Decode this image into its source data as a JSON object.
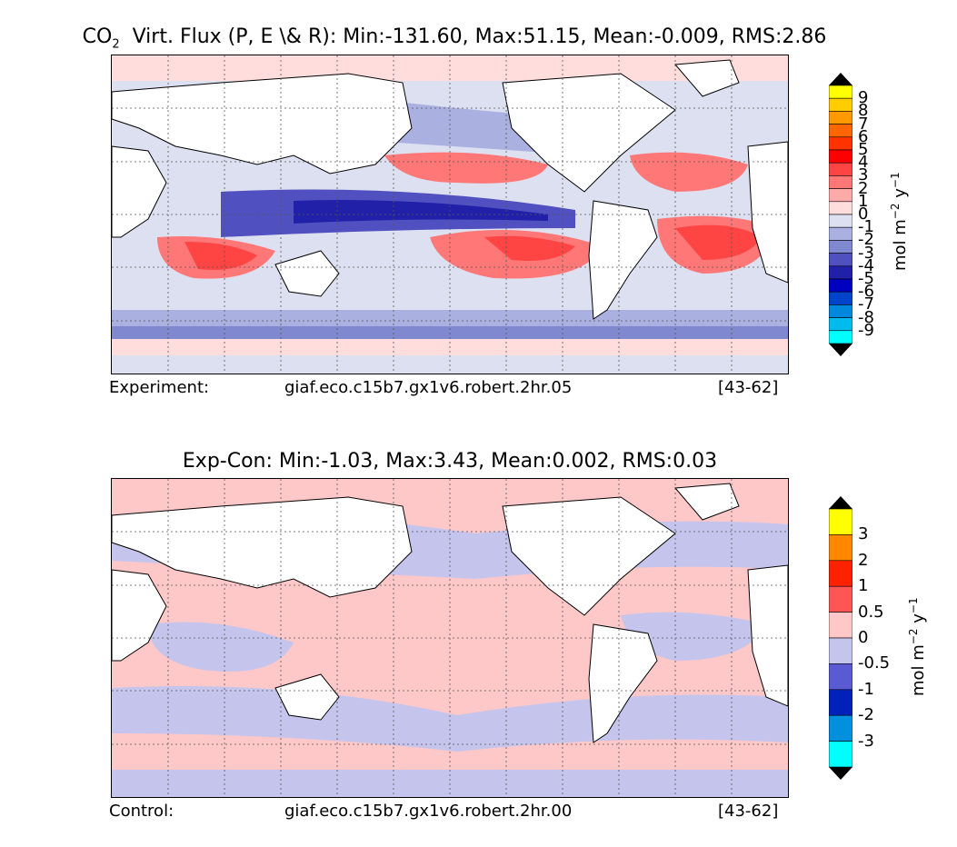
{
  "panel_top": {
    "title": "Virt. Flux (P, E \\& R): Min:-131.60, Max:51.15, Mean:-0.009, RMS:2.86",
    "title_species": "CO",
    "title_species_sub": "2",
    "caption_left": "Experiment:",
    "caption_center": "giaf.eco.c15b7.gx1v6.robert.2hr.05",
    "caption_right": "[43-62]",
    "colorbar": {
      "label": "mol m",
      "label_exp1": "−2",
      "label_mid": " y",
      "label_exp2": "−1",
      "ticks": [
        "9",
        "8",
        "7",
        "6",
        "5",
        "4",
        "3",
        "2",
        "1",
        "0",
        "-1",
        "-2",
        "-3",
        "-4",
        "-5",
        "-6",
        "-7",
        "-8",
        "-9"
      ],
      "colors": [
        "#ffff00",
        "#ffcc00",
        "#ff9900",
        "#ff6600",
        "#ff3300",
        "#ff0000",
        "#ff4444",
        "#ff7777",
        "#ffaaaa",
        "#ffdddd",
        "#dde0f0",
        "#aab0e0",
        "#8088d0",
        "#5050c0",
        "#2020a8",
        "#0000c0",
        "#0044cc",
        "#0088dd",
        "#00bbee",
        "#00ffff"
      ]
    }
  },
  "panel_bottom": {
    "title": "Exp-Con: Min:-1.03, Max:3.43, Mean:0.002, RMS:0.03",
    "caption_left": "Control:",
    "caption_center": "giaf.eco.c15b7.gx1v6.robert.2hr.00",
    "caption_right": "[43-62]",
    "colorbar": {
      "label": "mol m",
      "label_exp1": "−2",
      "label_mid": " y",
      "label_exp2": "−1",
      "ticks": [
        "3",
        "2",
        "1",
        "0.5",
        "0",
        "-0.5",
        "-1",
        "-2",
        "-3"
      ],
      "colors": [
        "#ffff00",
        "#ff8800",
        "#ff2200",
        "#ff5555",
        "#ffc8c8",
        "#c4c4ec",
        "#5a5ad2",
        "#0022bb",
        "#0090dd",
        "#00ffff"
      ]
    }
  },
  "colors": {
    "ocean_pos": "#ffc8c8",
    "ocean_neg": "#c4c4ec",
    "land": "#ffffff",
    "deep_pos": "#ff5555",
    "deep_neg": "#2a2ab8"
  }
}
